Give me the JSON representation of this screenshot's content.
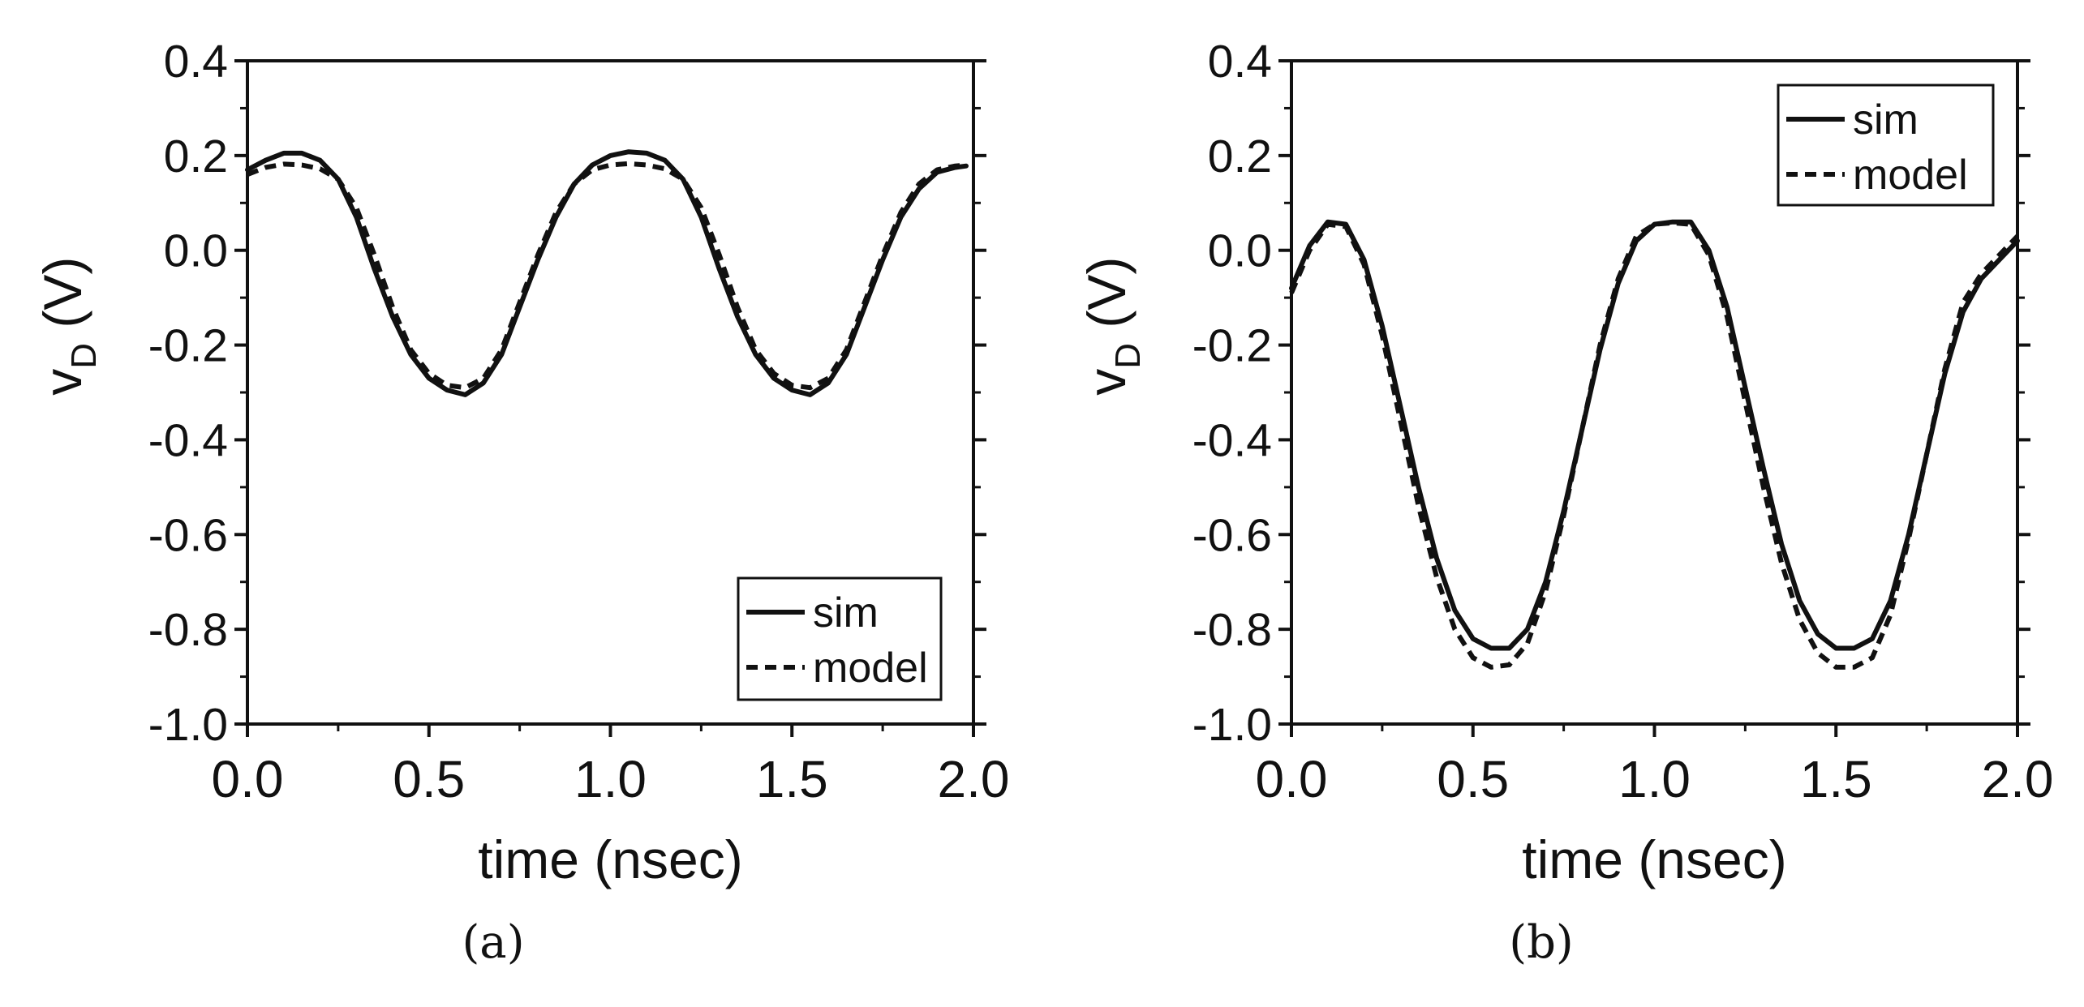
{
  "chart_data": [
    {
      "type": "line",
      "panel": "(a)",
      "xlabel": "time (nsec)",
      "ylabel": "v",
      "ylabel_sub": "D",
      "ylabel_unit": "(V)",
      "xlim": [
        0.0,
        2.0
      ],
      "ylim": [
        -1.0,
        0.4
      ],
      "xticks": [
        "0.0",
        "0.5",
        "1.0",
        "1.5",
        "2.0"
      ],
      "yticks": [
        "0.4",
        "0.2",
        "0.0",
        "-0.2",
        "-0.4",
        "-0.6",
        "-0.8",
        "-1.0"
      ],
      "legend_position": "bottom-right",
      "series": [
        {
          "name": "sim",
          "style": "solid",
          "x": [
            0.0,
            0.05,
            0.1,
            0.15,
            0.2,
            0.25,
            0.3,
            0.35,
            0.4,
            0.45,
            0.5,
            0.55,
            0.6,
            0.65,
            0.7,
            0.75,
            0.8,
            0.85,
            0.9,
            0.95,
            1.0,
            1.05,
            1.1,
            1.15,
            1.2,
            1.25,
            1.3,
            1.35,
            1.4,
            1.45,
            1.5,
            1.55,
            1.6,
            1.65,
            1.7,
            1.75,
            1.8,
            1.85,
            1.9,
            1.95,
            1.98
          ],
          "y": [
            0.17,
            0.19,
            0.205,
            0.205,
            0.19,
            0.15,
            0.07,
            -0.04,
            -0.14,
            -0.22,
            -0.27,
            -0.295,
            -0.305,
            -0.28,
            -0.22,
            -0.12,
            -0.02,
            0.07,
            0.14,
            0.18,
            0.2,
            0.208,
            0.205,
            0.19,
            0.15,
            0.07,
            -0.04,
            -0.14,
            -0.22,
            -0.27,
            -0.295,
            -0.305,
            -0.28,
            -0.22,
            -0.12,
            -0.02,
            0.07,
            0.13,
            0.165,
            0.175,
            0.178
          ]
        },
        {
          "name": "model",
          "style": "dashed",
          "x": [
            0.0,
            0.05,
            0.1,
            0.15,
            0.2,
            0.25,
            0.3,
            0.35,
            0.4,
            0.45,
            0.5,
            0.55,
            0.6,
            0.65,
            0.7,
            0.75,
            0.8,
            0.85,
            0.9,
            0.95,
            1.0,
            1.05,
            1.1,
            1.15,
            1.2,
            1.25,
            1.3,
            1.35,
            1.4,
            1.45,
            1.5,
            1.55,
            1.6,
            1.65,
            1.7,
            1.75,
            1.8,
            1.85,
            1.9,
            1.95,
            1.98
          ],
          "y": [
            0.16,
            0.175,
            0.182,
            0.18,
            0.172,
            0.15,
            0.09,
            -0.01,
            -0.12,
            -0.21,
            -0.26,
            -0.285,
            -0.29,
            -0.27,
            -0.21,
            -0.11,
            -0.01,
            0.08,
            0.14,
            0.17,
            0.18,
            0.183,
            0.18,
            0.172,
            0.15,
            0.09,
            -0.01,
            -0.12,
            -0.21,
            -0.26,
            -0.285,
            -0.29,
            -0.27,
            -0.21,
            -0.11,
            -0.01,
            0.08,
            0.14,
            0.17,
            0.178,
            0.18
          ]
        }
      ]
    },
    {
      "type": "line",
      "panel": "(b)",
      "xlabel": "time (nsec)",
      "ylabel": "v",
      "ylabel_sub": "D",
      "ylabel_unit": "(V)",
      "xlim": [
        0.0,
        2.0
      ],
      "ylim": [
        -1.0,
        0.4
      ],
      "xticks": [
        "0.0",
        "0.5",
        "1.0",
        "1.5",
        "2.0"
      ],
      "yticks": [
        "0.4",
        "0.2",
        "0.0",
        "-0.2",
        "-0.4",
        "-0.6",
        "-0.8",
        "-1.0"
      ],
      "legend_position": "top-right",
      "series": [
        {
          "name": "sim",
          "style": "solid",
          "x": [
            0.0,
            0.05,
            0.1,
            0.15,
            0.2,
            0.25,
            0.3,
            0.35,
            0.4,
            0.45,
            0.5,
            0.55,
            0.6,
            0.65,
            0.7,
            0.75,
            0.8,
            0.85,
            0.9,
            0.95,
            1.0,
            1.05,
            1.1,
            1.15,
            1.2,
            1.25,
            1.3,
            1.35,
            1.4,
            1.45,
            1.5,
            1.55,
            1.6,
            1.65,
            1.7,
            1.75,
            1.8,
            1.85,
            1.9,
            1.95,
            2.0
          ],
          "y": [
            -0.08,
            0.01,
            0.06,
            0.055,
            -0.02,
            -0.16,
            -0.33,
            -0.5,
            -0.65,
            -0.76,
            -0.82,
            -0.84,
            -0.84,
            -0.8,
            -0.7,
            -0.55,
            -0.38,
            -0.21,
            -0.07,
            0.02,
            0.055,
            0.06,
            0.06,
            0.0,
            -0.12,
            -0.29,
            -0.46,
            -0.62,
            -0.74,
            -0.81,
            -0.84,
            -0.84,
            -0.82,
            -0.74,
            -0.6,
            -0.43,
            -0.26,
            -0.13,
            -0.06,
            -0.02,
            0.02
          ]
        },
        {
          "name": "model",
          "style": "dashed",
          "x": [
            0.0,
            0.05,
            0.1,
            0.15,
            0.2,
            0.25,
            0.3,
            0.35,
            0.4,
            0.45,
            0.5,
            0.55,
            0.6,
            0.65,
            0.7,
            0.75,
            0.8,
            0.85,
            0.9,
            0.95,
            1.0,
            1.05,
            1.1,
            1.15,
            1.2,
            1.25,
            1.3,
            1.35,
            1.4,
            1.45,
            1.5,
            1.55,
            1.6,
            1.65,
            1.7,
            1.75,
            1.8,
            1.85,
            1.9,
            1.95,
            2.0
          ],
          "y": [
            -0.09,
            0.0,
            0.055,
            0.05,
            -0.03,
            -0.18,
            -0.36,
            -0.54,
            -0.69,
            -0.8,
            -0.86,
            -0.88,
            -0.875,
            -0.83,
            -0.72,
            -0.56,
            -0.38,
            -0.2,
            -0.06,
            0.03,
            0.055,
            0.058,
            0.055,
            -0.01,
            -0.14,
            -0.32,
            -0.5,
            -0.66,
            -0.78,
            -0.85,
            -0.88,
            -0.88,
            -0.86,
            -0.77,
            -0.61,
            -0.43,
            -0.25,
            -0.11,
            -0.05,
            -0.01,
            0.03
          ]
        }
      ]
    }
  ],
  "captions": [
    "(a)",
    "(b)"
  ]
}
